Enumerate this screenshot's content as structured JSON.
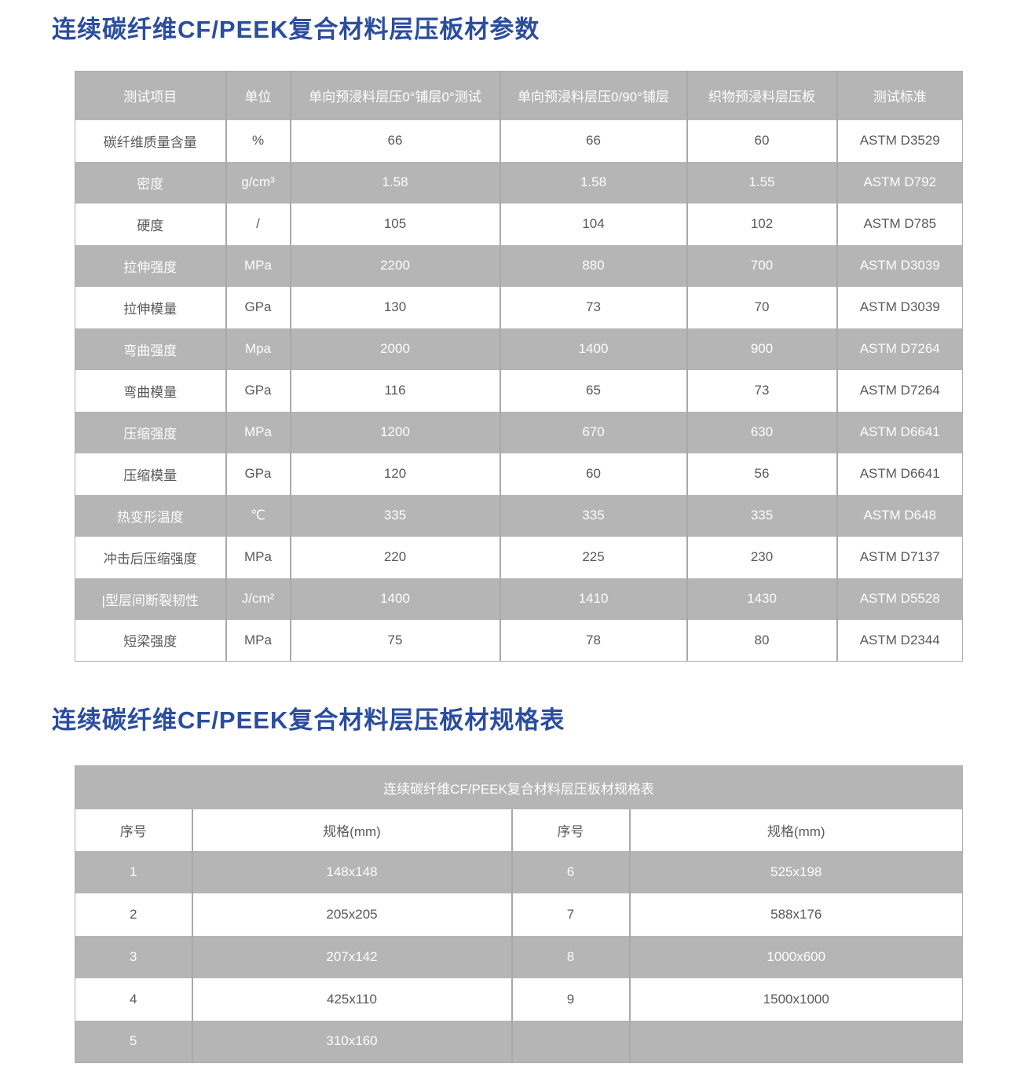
{
  "colors": {
    "title_blue": "#2b4da0",
    "row_gray": "#b5b5b5",
    "grid_line_gray": "#a9a9a9",
    "body_text_gray": "#595959"
  },
  "section1": {
    "title": "连续碳纤维CF/PEEK复合材料层压板材参数",
    "table": {
      "headers": [
        "测试项目",
        "单位",
        "单向预浸料层压0°铺层0°测试",
        "单向预浸料层压0/90°铺层",
        "织物预浸料层压板",
        "测试标准"
      ],
      "rows": [
        [
          "碳纤维质量含量",
          "%",
          "66",
          "66",
          "60",
          "ASTM D3529"
        ],
        [
          "密度",
          "g/cm³",
          "1.58",
          "1.58",
          "1.55",
          "ASTM D792"
        ],
        [
          "硬度",
          "/",
          "105",
          "104",
          "102",
          "ASTM D785"
        ],
        [
          "拉伸强度",
          "MPa",
          "2200",
          "880",
          "700",
          "ASTM D3039"
        ],
        [
          "拉伸模量",
          "GPa",
          "130",
          "73",
          "70",
          "ASTM D3039"
        ],
        [
          "弯曲强度",
          "Mpa",
          "2000",
          "1400",
          "900",
          "ASTM D7264"
        ],
        [
          "弯曲模量",
          "GPa",
          "116",
          "65",
          "73",
          "ASTM D7264"
        ],
        [
          "压缩强度",
          "MPa",
          "1200",
          "670",
          "630",
          "ASTM D6641"
        ],
        [
          "压缩模量",
          "GPa",
          "120",
          "60",
          "56",
          "ASTM D6641"
        ],
        [
          "热变形温度",
          "℃",
          "335",
          "335",
          "335",
          "ASTM D648"
        ],
        [
          "冲击后压缩强度",
          "MPa",
          "220",
          "225",
          "230",
          "ASTM D7137"
        ],
        [
          "|型层间断裂韧性",
          "J/cm²",
          "1400",
          "1410",
          "1430",
          "ASTM D5528"
        ],
        [
          "短梁强度",
          "MPa",
          "75",
          "78",
          "80",
          "ASTM D2344"
        ]
      ]
    }
  },
  "section2": {
    "title": "连续碳纤维CF/PEEK复合材料层压板材规格表",
    "table": {
      "caption": "连续碳纤维CF/PEEK复合材料层压板材规格表",
      "headers": [
        "序号",
        "规格(mm)",
        "序号",
        "规格(mm)"
      ],
      "rows": [
        [
          "1",
          "148x148",
          "6",
          "525x198"
        ],
        [
          "2",
          "205x205",
          "7",
          "588x176"
        ],
        [
          "3",
          "207x142",
          "8",
          "1000x600"
        ],
        [
          "4",
          "425x110",
          "9",
          "1500x1000"
        ],
        [
          "5",
          "310x160",
          "",
          ""
        ]
      ]
    }
  }
}
